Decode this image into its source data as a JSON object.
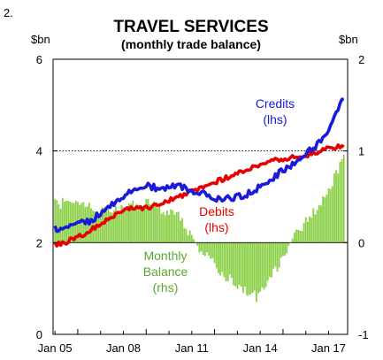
{
  "figure_number": "2.",
  "chart_data": {
    "type": "bar+line",
    "title": "TRAVEL SERVICES",
    "subtitle": "(monthly trade balance)",
    "left_axis": {
      "unit": "$bn",
      "ylim": [
        0,
        6
      ],
      "ticks": [
        0,
        2,
        4,
        6
      ]
    },
    "right_axis": {
      "unit": "$bn",
      "ylim": [
        -1,
        2
      ],
      "ticks": [
        -1,
        0,
        1,
        2
      ]
    },
    "x_ticks": [
      "Jan 05",
      "Jan 08",
      "Jan 11",
      "Jan 14",
      "Jan 17"
    ],
    "reference_line": {
      "axis": "left",
      "value": 4,
      "style": "dotted"
    },
    "colors": {
      "credits": "#1a1adb",
      "debits": "#e60000",
      "balance": "#8dd14a"
    },
    "series": [
      {
        "name": "Credits (lhs)",
        "label_lines": [
          "Credits",
          "(lhs)"
        ],
        "kind": "line",
        "axis": "left",
        "points": [
          [
            "2005-01",
            2.3
          ],
          [
            "2005-06",
            2.3
          ],
          [
            "2005-12",
            2.4
          ],
          [
            "2006-06",
            2.45
          ],
          [
            "2006-12",
            2.6
          ],
          [
            "2007-06",
            2.8
          ],
          [
            "2007-12",
            3.0
          ],
          [
            "2008-06",
            3.15
          ],
          [
            "2008-12",
            3.25
          ],
          [
            "2009-06",
            3.2
          ],
          [
            "2009-12",
            3.2
          ],
          [
            "2010-06",
            3.25
          ],
          [
            "2010-12",
            3.15
          ],
          [
            "2011-06",
            3.1
          ],
          [
            "2011-12",
            2.95
          ],
          [
            "2012-06",
            2.95
          ],
          [
            "2012-12",
            3.0
          ],
          [
            "2013-06",
            3.05
          ],
          [
            "2013-12",
            3.2
          ],
          [
            "2014-06",
            3.35
          ],
          [
            "2014-12",
            3.55
          ],
          [
            "2015-06",
            3.7
          ],
          [
            "2015-12",
            3.9
          ],
          [
            "2016-06",
            4.1
          ],
          [
            "2016-12",
            4.4
          ],
          [
            "2017-06",
            4.9
          ],
          [
            "2017-09",
            5.15
          ]
        ]
      },
      {
        "name": "Debits (lhs)",
        "label_lines": [
          "Debits",
          "(lhs)"
        ],
        "kind": "line",
        "axis": "left",
        "points": [
          [
            "2005-01",
            1.95
          ],
          [
            "2005-06",
            2.0
          ],
          [
            "2005-12",
            2.1
          ],
          [
            "2006-06",
            2.2
          ],
          [
            "2006-12",
            2.4
          ],
          [
            "2007-06",
            2.55
          ],
          [
            "2007-12",
            2.7
          ],
          [
            "2008-06",
            2.75
          ],
          [
            "2008-12",
            2.75
          ],
          [
            "2009-06",
            2.8
          ],
          [
            "2009-12",
            2.9
          ],
          [
            "2010-06",
            3.0
          ],
          [
            "2010-12",
            3.1
          ],
          [
            "2011-06",
            3.2
          ],
          [
            "2011-12",
            3.3
          ],
          [
            "2012-06",
            3.4
          ],
          [
            "2012-12",
            3.5
          ],
          [
            "2013-06",
            3.6
          ],
          [
            "2013-12",
            3.7
          ],
          [
            "2014-06",
            3.8
          ],
          [
            "2014-12",
            3.8
          ],
          [
            "2015-06",
            3.85
          ],
          [
            "2015-12",
            3.9
          ],
          [
            "2016-06",
            3.95
          ],
          [
            "2016-12",
            4.05
          ],
          [
            "2017-06",
            4.1
          ],
          [
            "2017-09",
            4.1
          ]
        ]
      },
      {
        "name": "Monthly Balance (rhs)",
        "label_lines": [
          "Monthly",
          "Balance",
          "(rhs)"
        ],
        "kind": "bar",
        "axis": "right",
        "points": [
          [
            "2005-01",
            0.43
          ],
          [
            "2005-06",
            0.43
          ],
          [
            "2005-12",
            0.42
          ],
          [
            "2006-06",
            0.4
          ],
          [
            "2006-12",
            0.32
          ],
          [
            "2007-06",
            0.35
          ],
          [
            "2007-12",
            0.38
          ],
          [
            "2008-06",
            0.4
          ],
          [
            "2008-12",
            0.45
          ],
          [
            "2009-06",
            0.4
          ],
          [
            "2009-12",
            0.35
          ],
          [
            "2010-06",
            0.3
          ],
          [
            "2010-12",
            0.1
          ],
          [
            "2011-06",
            -0.1
          ],
          [
            "2011-12",
            -0.2
          ],
          [
            "2012-06",
            -0.35
          ],
          [
            "2012-12",
            -0.45
          ],
          [
            "2013-06",
            -0.55
          ],
          [
            "2013-12",
            -0.6
          ],
          [
            "2014-06",
            -0.4
          ],
          [
            "2014-12",
            -0.2
          ],
          [
            "2015-06",
            0.05
          ],
          [
            "2015-12",
            0.2
          ],
          [
            "2016-06",
            0.35
          ],
          [
            "2016-12",
            0.5
          ],
          [
            "2017-06",
            0.8
          ],
          [
            "2017-09",
            1.0
          ]
        ]
      }
    ]
  }
}
